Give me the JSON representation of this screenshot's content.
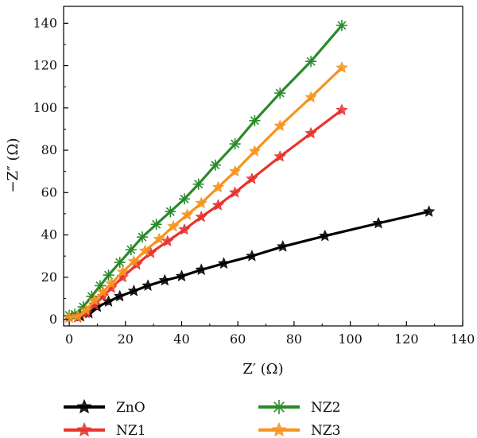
{
  "chart_data": {
    "type": "line",
    "xlabel": "Z′ (Ω)",
    "ylabel": "−Z″ (Ω)",
    "xlim": [
      -2,
      140
    ],
    "ylim": [
      -3,
      148
    ],
    "xticks": [
      "0",
      "20",
      "40",
      "60",
      "80",
      "100",
      "120",
      "140"
    ],
    "yticks": [
      "0",
      "20",
      "40",
      "60",
      "80",
      "100",
      "120",
      "140"
    ],
    "legend_position": "bottom",
    "series": [
      {
        "name": "ZnO",
        "color": "#000000",
        "marker": "star",
        "x": [
          0,
          4,
          7,
          10,
          14,
          18,
          23,
          28,
          34,
          40,
          47,
          55,
          65,
          76,
          91,
          110,
          128
        ],
        "y": [
          1,
          1.5,
          3,
          6,
          8.5,
          11,
          13.5,
          16,
          18.5,
          20.5,
          23.5,
          26.5,
          30,
          34.5,
          39.5,
          45.5,
          51
        ]
      },
      {
        "name": "NZ1",
        "color": "#e8332e",
        "marker": "star",
        "x": [
          0,
          3,
          6,
          9,
          12,
          15,
          19,
          24,
          29,
          35,
          41,
          47,
          53,
          59,
          65,
          75,
          86,
          97
        ],
        "y": [
          1,
          1,
          3,
          7,
          11,
          15,
          20,
          26,
          31.5,
          37,
          42.5,
          48.5,
          54,
          60,
          66.5,
          77,
          88,
          99
        ]
      },
      {
        "name": "NZ2",
        "color": "#2a8a2a",
        "marker": "asterisk",
        "x": [
          0,
          2,
          5,
          8,
          11,
          14,
          18,
          22,
          26,
          31,
          36,
          41,
          46,
          52,
          59,
          66,
          75,
          86,
          97
        ],
        "y": [
          2,
          2.5,
          6,
          11,
          16,
          21,
          27,
          33,
          39,
          45,
          51,
          57,
          64,
          73,
          83,
          94,
          107,
          122,
          139
        ]
      },
      {
        "name": "NZ3",
        "color": "#f7931e",
        "marker": "star",
        "x": [
          0,
          3,
          6,
          9,
          12,
          15,
          19,
          23,
          27,
          32,
          37,
          42,
          47,
          53,
          59,
          66,
          75,
          86,
          97
        ],
        "y": [
          1,
          1.5,
          4.5,
          9,
          13,
          17,
          22.5,
          27.5,
          32.5,
          38,
          44,
          49.5,
          55,
          62.5,
          70,
          79.5,
          91.5,
          105,
          119
        ]
      }
    ]
  }
}
